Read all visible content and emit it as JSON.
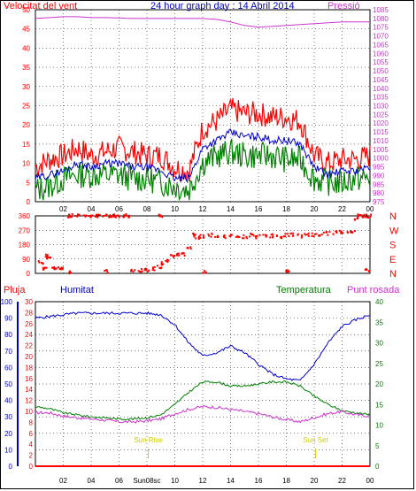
{
  "header": {
    "wind_speed_label": "Velocitat del vent",
    "title": "24 hour graph day : 14 Abril 2014",
    "pressure_label": "Pressió"
  },
  "direction_labels": [
    "N",
    "W",
    "S",
    "E",
    "N"
  ],
  "lower_labels": {
    "rain": "Pluja",
    "humidity": "Humitat",
    "temperature": "Temperatura",
    "dew_point": "Punt rosada",
    "sun_rise": "Sun Rise",
    "sun_set": "Sun Set",
    "sun_conflict_tick": "Sun08sc"
  },
  "colors": {
    "wind_gust": "#ff0000",
    "wind_avg": "#0000cc",
    "wind_low": "#008000",
    "pressure": "#cc33cc",
    "direction": "#ff0000",
    "humidity": "#0000cc",
    "temperature": "#008000",
    "dew_point": "#cc33cc",
    "rain": "#ff0000",
    "sun_marker": "#cccc00",
    "axis_left": "#ff0000",
    "axis_right_top": "#cc33cc",
    "axis_left_lower": "#0000cc",
    "axis_right_lower": "#008000",
    "rain_axis": "#ff0000"
  },
  "x_axis": {
    "hours_start": 0,
    "hours_end": 24,
    "tick_labels": [
      "02",
      "04",
      "06",
      "08",
      "10",
      "12",
      "14",
      "16",
      "18",
      "20",
      "22",
      "00"
    ],
    "tick_hours": [
      2,
      4,
      6,
      8,
      10,
      12,
      14,
      16,
      18,
      20,
      22,
      24
    ]
  },
  "chart_data": [
    {
      "type": "line",
      "name": "wind-pressure",
      "title": "24 hour graph day : 14 Abril 2014",
      "ylabel": "Velocitat del vent",
      "y2label": "Pressió",
      "ylim": [
        0,
        50
      ],
      "y2lim": [
        975,
        1085
      ],
      "yticks": [
        0,
        5,
        10,
        15,
        20,
        25,
        30,
        35,
        40,
        45,
        50
      ],
      "y2ticks": [
        975,
        980,
        985,
        990,
        995,
        1000,
        1005,
        1010,
        1015,
        1020,
        1025,
        1030,
        1035,
        1040,
        1045,
        1050,
        1055,
        1060,
        1065,
        1070,
        1075,
        1080,
        1085
      ],
      "x": [
        0,
        1,
        2,
        3,
        4,
        5,
        6,
        7,
        8,
        9,
        10,
        11,
        12,
        13,
        14,
        15,
        16,
        17,
        18,
        19,
        20,
        21,
        22,
        23,
        24
      ],
      "series": [
        {
          "name": "gust",
          "values": [
            9,
            11,
            12,
            14,
            12,
            13,
            14,
            13,
            12,
            12,
            9,
            8,
            19,
            21,
            24,
            23,
            23,
            22,
            22,
            21,
            12,
            10,
            11,
            11,
            12
          ]
        },
        {
          "name": "average",
          "values": [
            6,
            7,
            8,
            10,
            9,
            10,
            10,
            9,
            9,
            8,
            6,
            6,
            14,
            16,
            18,
            17,
            17,
            16,
            16,
            15,
            9,
            7,
            8,
            8,
            9
          ]
        },
        {
          "name": "low",
          "values": [
            3,
            4,
            6,
            7,
            7,
            7,
            7,
            6,
            6,
            5,
            4,
            3,
            10,
            12,
            13,
            12,
            12,
            12,
            11,
            11,
            6,
            5,
            5,
            6,
            6
          ]
        },
        {
          "name": "pressure",
          "axis": "y2",
          "values": [
            1080,
            1080.5,
            1081,
            1081,
            1080.5,
            1080.5,
            1080.3,
            1080,
            1080,
            1080,
            1080,
            1080,
            1080,
            1079.5,
            1078,
            1076,
            1075,
            1075.5,
            1076,
            1076.5,
            1077,
            1077.5,
            1078,
            1078,
            1078
          ]
        }
      ]
    },
    {
      "type": "scatter",
      "name": "wind-direction",
      "ylim": [
        0,
        360
      ],
      "yticks": [
        0,
        90,
        180,
        270,
        360
      ],
      "points": [
        [
          0.4,
          70
        ],
        [
          0.7,
          30
        ],
        [
          0.8,
          110
        ],
        [
          1.0,
          100
        ],
        [
          1.2,
          30
        ],
        [
          1.5,
          30
        ],
        [
          1.9,
          30
        ],
        [
          2.3,
          360
        ],
        [
          2.6,
          360
        ],
        [
          3.0,
          360
        ],
        [
          3.5,
          360
        ],
        [
          4.0,
          360
        ],
        [
          4.5,
          360
        ],
        [
          5.0,
          360
        ],
        [
          5.3,
          360
        ],
        [
          5.6,
          360
        ],
        [
          5.9,
          360
        ],
        [
          6.4,
          360
        ],
        [
          6.7,
          360
        ],
        [
          7.0,
          20
        ],
        [
          7.5,
          20
        ],
        [
          7.8,
          30
        ],
        [
          8.0,
          20
        ],
        [
          8.5,
          30
        ],
        [
          8.9,
          40
        ],
        [
          9.0,
          360
        ],
        [
          9.2,
          60
        ],
        [
          9.5,
          75
        ],
        [
          9.9,
          110
        ],
        [
          10.2,
          120
        ],
        [
          10.6,
          120
        ],
        [
          11.0,
          160
        ],
        [
          11.3,
          240
        ],
        [
          11.6,
          225
        ],
        [
          12,
          230
        ],
        [
          12.5,
          240
        ],
        [
          13,
          235
        ],
        [
          13.5,
          230
        ],
        [
          14,
          240
        ],
        [
          14.5,
          235
        ],
        [
          15,
          230
        ],
        [
          15.5,
          240
        ],
        [
          16,
          230
        ],
        [
          16.5,
          240
        ],
        [
          17,
          235
        ],
        [
          17.5,
          230
        ],
        [
          18,
          240
        ],
        [
          18.5,
          240
        ],
        [
          19,
          235
        ],
        [
          19.5,
          240
        ],
        [
          20,
          240
        ],
        [
          20.5,
          245
        ],
        [
          21,
          250
        ],
        [
          21.5,
          255
        ],
        [
          22,
          260
        ],
        [
          22.5,
          265
        ],
        [
          22.8,
          260
        ],
        [
          23.0,
          340
        ],
        [
          23.3,
          360
        ],
        [
          23.6,
          360
        ],
        [
          23.9,
          360
        ],
        [
          2.4,
          10
        ],
        [
          5.1,
          10
        ],
        [
          12.2,
          10
        ],
        [
          18.1,
          10
        ],
        [
          23.8,
          20
        ]
      ]
    },
    {
      "type": "line",
      "name": "humidity-temperature-dew-rain",
      "ylabel": "Humitat",
      "y2label": "Temperatura",
      "rain_label": "Pluja",
      "ylim": [
        0,
        100
      ],
      "y2lim": [
        0,
        40
      ],
      "rain_lim": [
        0,
        30
      ],
      "yticks": [
        0,
        10,
        20,
        30,
        40,
        50,
        60,
        70,
        80,
        90,
        100
      ],
      "y2ticks": [
        0,
        5,
        10,
        15,
        20,
        25,
        30,
        35,
        40
      ],
      "rain_ticks": [
        0,
        2,
        4,
        6,
        8,
        10,
        12,
        14,
        16,
        18,
        20,
        22,
        24,
        26,
        28,
        30
      ],
      "x": [
        0,
        1,
        2,
        3,
        4,
        5,
        6,
        7,
        8,
        9,
        10,
        11,
        12,
        13,
        14,
        15,
        16,
        17,
        18,
        19,
        20,
        21,
        22,
        23,
        24
      ],
      "series": [
        {
          "name": "humidity",
          "values": [
            90,
            91,
            92,
            93,
            93,
            93,
            93,
            93,
            93,
            92,
            86,
            75,
            67,
            69,
            73,
            69,
            62,
            56,
            53,
            52,
            62,
            75,
            85,
            89,
            92
          ]
        },
        {
          "name": "temperature",
          "axis": "y2",
          "values": [
            14.5,
            14,
            13,
            12.5,
            12,
            11.8,
            11.5,
            11.5,
            11.8,
            12.5,
            15,
            18,
            20.5,
            20.5,
            19.5,
            19.5,
            20,
            20.5,
            20.5,
            19.5,
            17,
            15,
            13.5,
            13,
            12.5
          ]
        },
        {
          "name": "dew_point",
          "axis": "y2",
          "values": [
            13,
            13,
            12.2,
            11.8,
            11.5,
            11.2,
            10.8,
            10.8,
            11,
            11.5,
            12.8,
            13.8,
            14.5,
            14.3,
            13.8,
            13.3,
            12.8,
            12,
            11.3,
            10.8,
            11.8,
            12.8,
            13.3,
            12.5,
            12.2
          ]
        },
        {
          "name": "rain",
          "axis": "rain",
          "values": [
            0,
            0,
            0,
            0,
            0,
            0,
            0,
            0,
            0,
            0,
            0,
            0,
            0,
            0,
            0,
            0,
            0,
            0,
            0,
            0,
            0,
            0,
            0,
            0,
            0
          ]
        }
      ],
      "sun_rise_hour": 8.1,
      "sun_set_hour": 20.1
    }
  ]
}
